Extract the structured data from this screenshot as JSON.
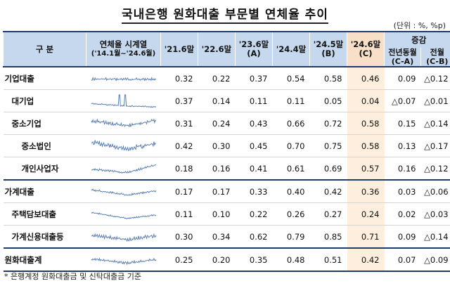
{
  "title": "국내은행 원화대출 부문별 연체율 추이",
  "unit": "(단위 : %, %p)",
  "header": {
    "category": "구    분",
    "series_label_1": "연체율 시계열",
    "series_label_2": "('14.1월~'24.6월)",
    "cols": [
      {
        "l1": "'21.6말",
        "l2": ""
      },
      {
        "l1": "'22.6말",
        "l2": ""
      },
      {
        "l1": "'23.6말",
        "l2": "(A)"
      },
      {
        "l1": "'24.4말",
        "l2": ""
      },
      {
        "l1": "'24.5말",
        "l2": "(B)"
      },
      {
        "l1": "'24.6말",
        "l2": "(C)"
      }
    ],
    "change_group": "증감",
    "change_cols": [
      {
        "l1": "전년동월",
        "l2": "(C-A)"
      },
      {
        "l1": "전월",
        "l2": "(C-B)"
      }
    ]
  },
  "rows": [
    {
      "label": "기업대출",
      "level": 0,
      "values": [
        "0.32",
        "0.22",
        "0.37",
        "0.54",
        "0.58",
        "0.46"
      ],
      "changes": [
        "0.09",
        "△0.12"
      ],
      "spark": "corp"
    },
    {
      "label": "대기업",
      "level": 1,
      "values": [
        "0.37",
        "0.14",
        "0.11",
        "0.11",
        "0.05",
        "0.04"
      ],
      "changes": [
        "△0.07",
        "△0.01"
      ],
      "spark": "large"
    },
    {
      "label": "중소기업",
      "level": 1,
      "values": [
        "0.31",
        "0.24",
        "0.43",
        "0.66",
        "0.72",
        "0.58"
      ],
      "changes": [
        "0.15",
        "△0.14"
      ],
      "spark": "sme"
    },
    {
      "label": "중소법인",
      "level": 2,
      "values": [
        "0.42",
        "0.30",
        "0.45",
        "0.70",
        "0.75",
        "0.58"
      ],
      "changes": [
        "0.13",
        "△0.17"
      ],
      "spark": "smecorp"
    },
    {
      "label": "개인사업자",
      "level": 2,
      "values": [
        "0.18",
        "0.16",
        "0.41",
        "0.61",
        "0.69",
        "0.57"
      ],
      "changes": [
        "0.16",
        "△0.12"
      ],
      "spark": "selfemp"
    },
    {
      "label": "가계대출",
      "level": 0,
      "values": [
        "0.17",
        "0.17",
        "0.33",
        "0.40",
        "0.42",
        "0.36"
      ],
      "changes": [
        "0.03",
        "△0.06"
      ],
      "spark": "household"
    },
    {
      "label": "주택담보대출",
      "level": 1,
      "values": [
        "0.11",
        "0.10",
        "0.22",
        "0.26",
        "0.27",
        "0.24"
      ],
      "changes": [
        "0.02",
        "△0.03"
      ],
      "spark": "mortgage"
    },
    {
      "label": "가계신용대출등",
      "level": 1,
      "values": [
        "0.30",
        "0.34",
        "0.62",
        "0.79",
        "0.85",
        "0.71"
      ],
      "changes": [
        "0.09",
        "△0.14"
      ],
      "spark": "credit"
    },
    {
      "label": "원화대출계",
      "level": 0,
      "values": [
        "0.25",
        "0.20",
        "0.35",
        "0.48",
        "0.51",
        "0.42"
      ],
      "changes": [
        "0.07",
        "△0.09"
      ],
      "spark": "total"
    }
  ],
  "footnote": "* 은행계정 원화대출금 및 신탁대출금 기준",
  "colors": {
    "header_bg": "#c6d8ee",
    "highlight": "#fdeedd",
    "line": "#1f3b6b",
    "spark": "#5a7fb4"
  }
}
